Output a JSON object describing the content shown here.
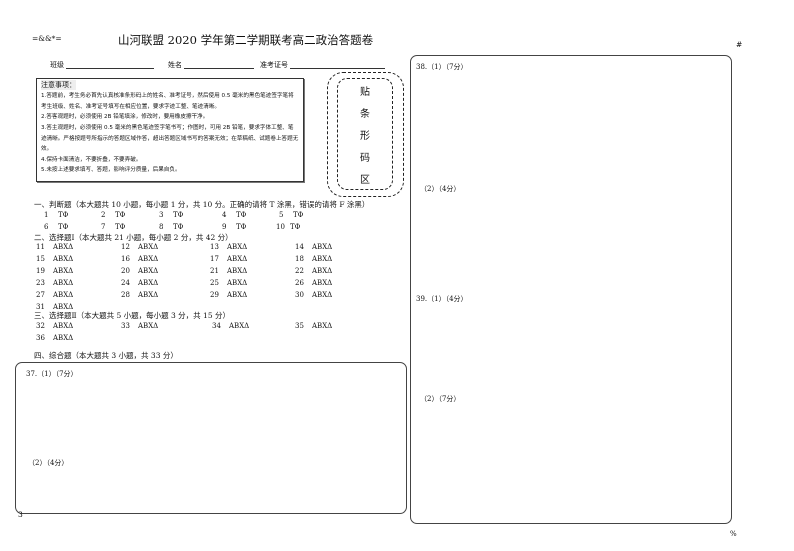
{
  "header": {
    "code": "=&&*=",
    "title": "山河联盟 2020 学年第二学期联考高二政治答题卷",
    "class_label": "班级",
    "name_label": "姓名",
    "exam_id_label": "准考证号",
    "corner_mark": "#",
    "bottom_mark": "3",
    "bottom_right_mark": "%"
  },
  "notes": {
    "heading": "注意事项：",
    "items": [
      "1.答题前，考生务必首先认真核准条形码上的姓名、准考证号，然后使用 0.5 毫米的黑色笔迹签字笔将考生班级、姓名、准考证号填写在相应位置，要求字迹工整、笔迹清晰。",
      "2.答客观题时，必须使用 2B 铅笔填涂，修改时，要用橡皮擦干净。",
      "3.答主观题时，必须使用 0.5 毫米的黑色笔迹签字笔书写；作图时，可用 2B 铅笔，要求字体工整、笔迹清晰。严格按题号所指示的答题区域作答，超出答题区域书写的答案无效；在草稿纸、试题卷上答题无效。",
      "4.保持卡面清洁，不要折叠，不要弄破。",
      "5.未按上述要求填写、答题，影响评分质量，后果自负。"
    ]
  },
  "barcode": {
    "chars": [
      "贴",
      "条",
      "形",
      "码",
      "区"
    ]
  },
  "section1": {
    "title": "一、判断题（本大题共 10 小题，每小题 1 分，共 10 分。正确的请将 T 涂黑，错误的请将 F 涂黑）",
    "options": "TΦ",
    "items": [
      "1",
      "2",
      "3",
      "4",
      "5",
      "6",
      "7",
      "8",
      "9",
      "10"
    ]
  },
  "section2": {
    "title": "二、选择题Ⅰ（本大题共 21 小题，每小题 2 分，共 42 分）",
    "options": "ABXΔ",
    "items": [
      "11",
      "12",
      "13",
      "14",
      "15",
      "16",
      "17",
      "18",
      "19",
      "20",
      "21",
      "22",
      "23",
      "24",
      "25",
      "26",
      "27",
      "28",
      "29",
      "30",
      "31"
    ]
  },
  "section3": {
    "title": "三、选择题Ⅱ（本大题共 5 小题，每小题 3 分，共 15 分）",
    "options": "ABXΔ",
    "items": [
      "32",
      "33",
      "34",
      "35",
      "36"
    ]
  },
  "section4": {
    "title": "四、综合题（本大题共 3 小题，共 33 分）"
  },
  "q37": {
    "p1": "37.（1）（7分）",
    "p2": "（2）（4分）"
  },
  "q38": {
    "p1": "38.（1）（7分）",
    "p2": "（2）（4分）"
  },
  "q39": {
    "p1": "39.（1）（4分）",
    "p2": "（2）（7分）"
  }
}
